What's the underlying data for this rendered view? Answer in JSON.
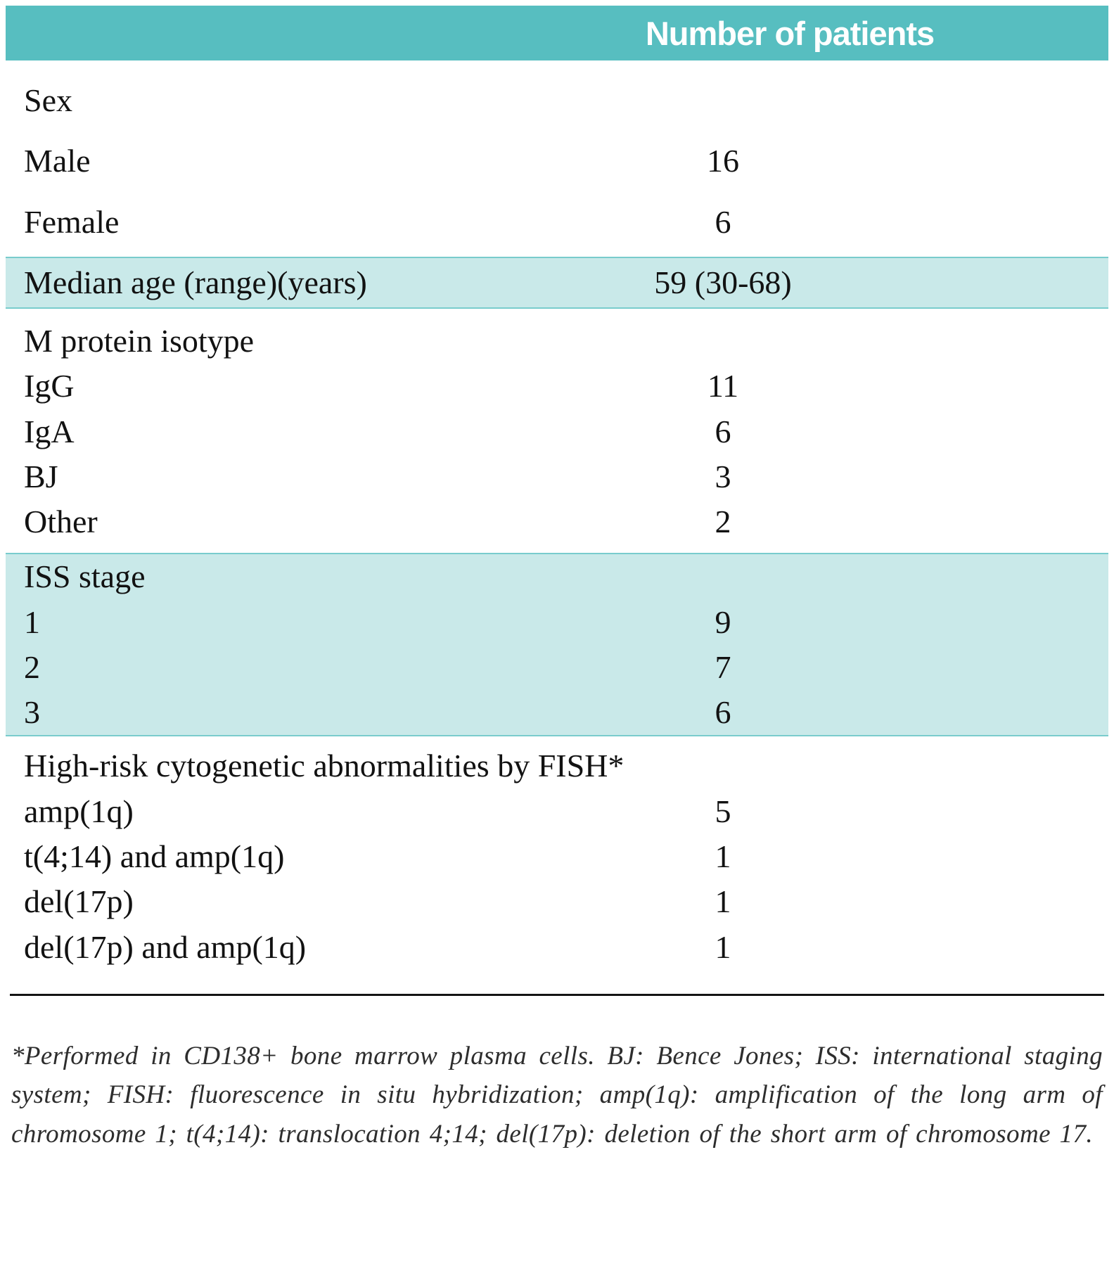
{
  "colors": {
    "header_bg": "#57bec0",
    "band_bg": "#c9e9e9",
    "band_border": "#79cccd",
    "header_text": "#ffffff",
    "body_text": "#121212"
  },
  "table": {
    "value_column_header": "Number of patients",
    "rows": [
      {
        "label": "Sex",
        "value": ""
      },
      {
        "label": "Male",
        "value": "16"
      },
      {
        "label": "Female",
        "value": "6"
      },
      {
        "label": "Median age (range)(years)",
        "value": "59 (30-68)"
      },
      {
        "label": "M protein isotype",
        "value": ""
      },
      {
        "label": "IgG",
        "value": "11"
      },
      {
        "label": "IgA",
        "value": "6"
      },
      {
        "label": "BJ",
        "value": "3"
      },
      {
        "label": "Other",
        "value": "2"
      },
      {
        "label": "ISS stage",
        "value": ""
      },
      {
        "label": "1",
        "value": "9"
      },
      {
        "label": "2",
        "value": "7"
      },
      {
        "label": "3",
        "value": "6"
      },
      {
        "label": "High-risk cytogenetic abnormalities by FISH*",
        "value": ""
      },
      {
        "label": "amp(1q)",
        "value": "5"
      },
      {
        "label": "t(4;14) and amp(1q)",
        "value": "1"
      },
      {
        "label": "del(17p)",
        "value": "1"
      },
      {
        "label": "del(17p) and amp(1q)",
        "value": "1"
      }
    ]
  },
  "footnote": "*Performed in CD138+ bone marrow plasma cells. BJ: Bence Jones; ISS: international staging system; FISH: fluorescence in situ hybridization; amp(1q): amplification of the long arm of chromosome 1; t(4;14): translocation 4;14; del(17p): deletion of the short arm of chromosome 17."
}
